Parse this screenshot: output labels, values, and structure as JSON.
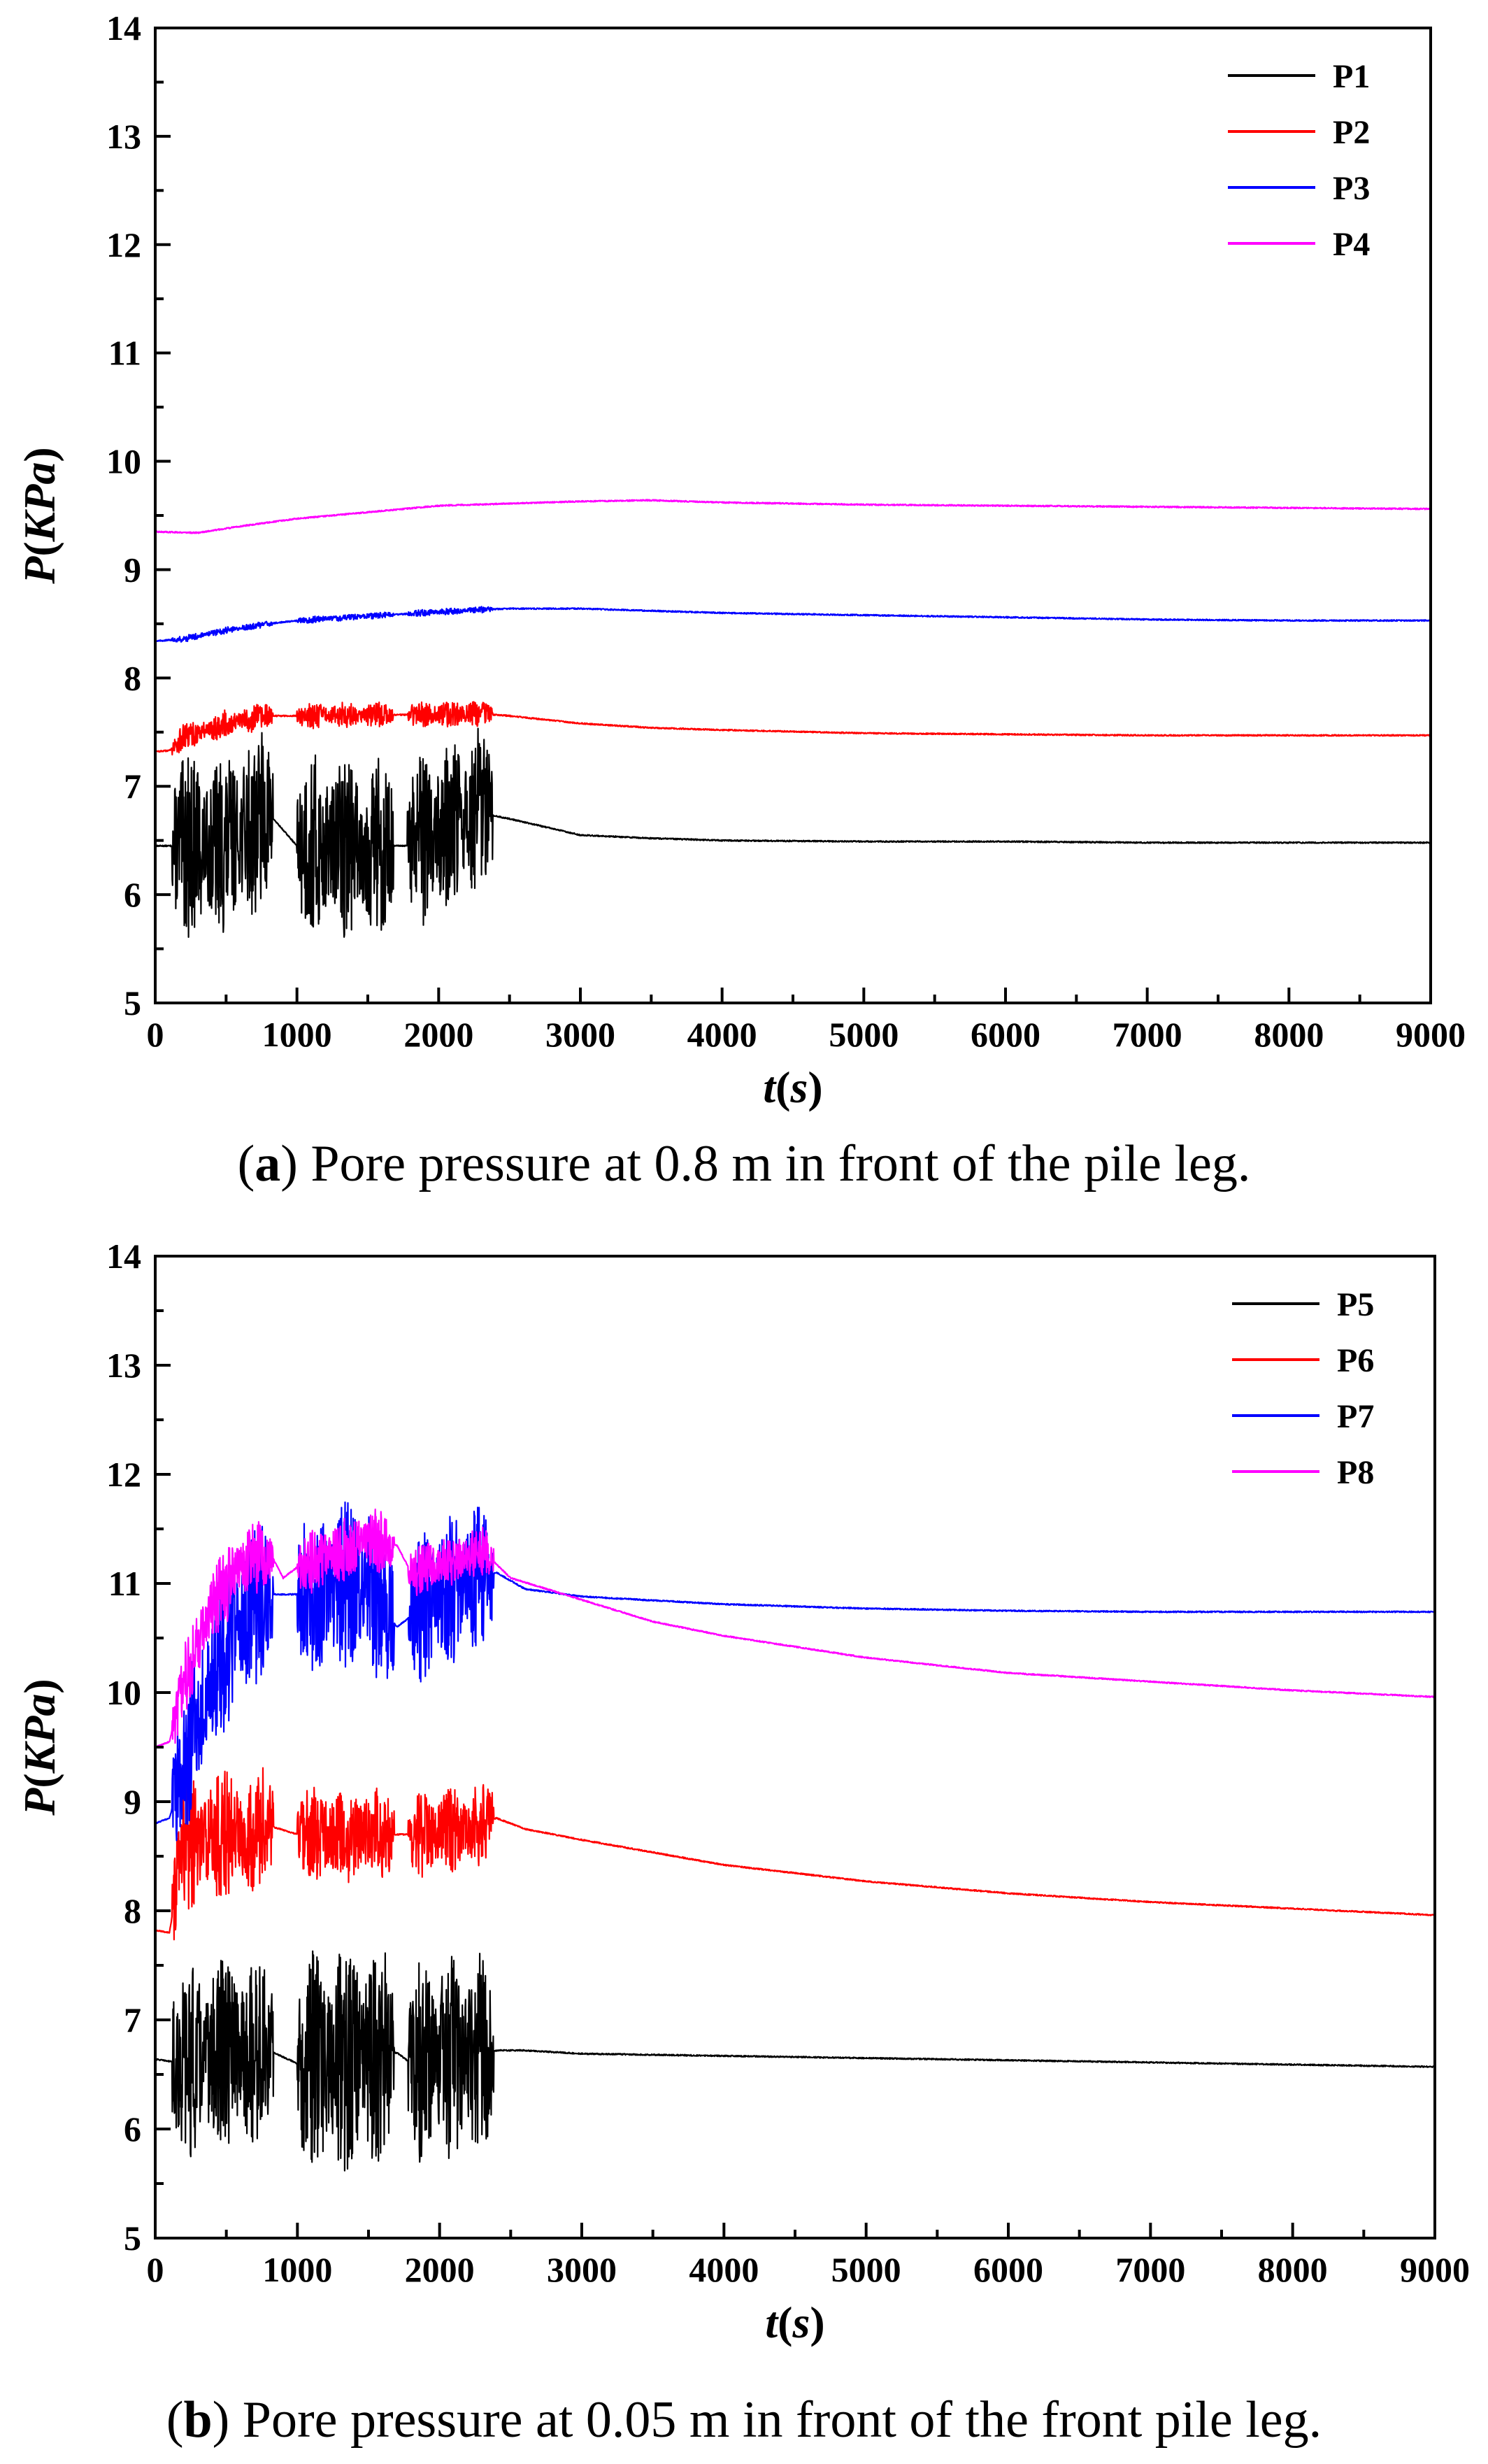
{
  "chart_data": [
    {
      "type": "line",
      "panel": "a",
      "xlabel_main": "t",
      "xlabel_unit": "s",
      "ylabel_main": "P",
      "ylabel_unit": "KPa",
      "xlim": [
        0,
        9000
      ],
      "ylim": [
        5,
        14
      ],
      "xticks": [
        0,
        1000,
        2000,
        3000,
        4000,
        5000,
        6000,
        7000,
        8000,
        9000
      ],
      "yticks": [
        5,
        6,
        7,
        8,
        9,
        10,
        11,
        12,
        13,
        14
      ],
      "grid": false,
      "legend_position": "top-right",
      "caption_letter": "a",
      "caption_text": ") Pore pressure at 0.8 m in front of the pile leg.",
      "series": [
        {
          "name": "P1",
          "color": "#000000",
          "x": [
            0,
            200,
            500,
            800,
            1000,
            1400,
            1800,
            2300,
            2500,
            3000,
            3500,
            4000,
            5000,
            6000,
            7000,
            8000,
            9000
          ],
          "y": [
            6.45,
            6.45,
            6.45,
            6.75,
            6.45,
            6.45,
            6.45,
            6.75,
            6.7,
            6.55,
            6.52,
            6.5,
            6.49,
            6.49,
            6.48,
            6.48,
            6.48
          ],
          "bursts": [
            {
              "start": 120,
              "end": 830,
              "amp": 0.85
            },
            {
              "start": 1000,
              "end": 1680,
              "amp": 0.85
            },
            {
              "start": 1780,
              "end": 2380,
              "amp": 0.8
            }
          ]
        },
        {
          "name": "P2",
          "color": "#ff0000",
          "x": [
            0,
            100,
            200,
            500,
            800,
            1000,
            1400,
            1800,
            2300,
            2500,
            3000,
            3500,
            4000,
            5000,
            6000,
            7000,
            8000,
            9000
          ],
          "y": [
            7.32,
            7.33,
            7.45,
            7.58,
            7.65,
            7.65,
            7.66,
            7.66,
            7.67,
            7.65,
            7.58,
            7.54,
            7.52,
            7.49,
            7.48,
            7.47,
            7.47,
            7.47
          ],
          "bursts": [
            {
              "start": 120,
              "end": 830,
              "amp": 0.13
            },
            {
              "start": 1000,
              "end": 1680,
              "amp": 0.12
            },
            {
              "start": 1780,
              "end": 2380,
              "amp": 0.12
            }
          ]
        },
        {
          "name": "P3",
          "color": "#0000ff",
          "x": [
            0,
            200,
            500,
            800,
            1000,
            1500,
            2000,
            2300,
            2500,
            3000,
            3500,
            4000,
            5000,
            6000,
            7000,
            8000,
            9000
          ],
          "y": [
            8.34,
            8.36,
            8.44,
            8.5,
            8.53,
            8.57,
            8.61,
            8.63,
            8.64,
            8.64,
            8.62,
            8.6,
            8.58,
            8.56,
            8.54,
            8.53,
            8.53
          ],
          "bursts": [
            {
              "start": 120,
              "end": 830,
              "amp": 0.03
            },
            {
              "start": 1000,
              "end": 1680,
              "amp": 0.03
            },
            {
              "start": 1780,
              "end": 2380,
              "amp": 0.03
            }
          ]
        },
        {
          "name": "P4",
          "color": "#ff00ff",
          "x": [
            0,
            300,
            600,
            1000,
            1500,
            2000,
            2500,
            3000,
            3500,
            4000,
            5000,
            6000,
            7000,
            8000,
            9000
          ],
          "y": [
            9.35,
            9.34,
            9.4,
            9.47,
            9.53,
            9.59,
            9.61,
            9.63,
            9.64,
            9.62,
            9.6,
            9.59,
            9.58,
            9.57,
            9.56
          ],
          "bursts": []
        }
      ]
    },
    {
      "type": "line",
      "panel": "b",
      "xlabel_main": "t",
      "xlabel_unit": "s",
      "ylabel_main": "P",
      "ylabel_unit": "KPa",
      "xlim": [
        0,
        9000
      ],
      "ylim": [
        5,
        14
      ],
      "xticks": [
        0,
        1000,
        2000,
        3000,
        4000,
        5000,
        6000,
        7000,
        8000,
        9000
      ],
      "yticks": [
        5,
        6,
        7,
        8,
        9,
        10,
        11,
        12,
        13,
        14
      ],
      "grid": false,
      "legend_position": "top-right",
      "caption_letter": "b",
      "caption_text": ") Pore pressure at 0.05 m in front of the front pile leg.",
      "series": [
        {
          "name": "P5",
          "color": "#000000",
          "x": [
            0,
            100,
            200,
            800,
            1000,
            1700,
            1800,
            2400,
            2600,
            3000,
            4000,
            5000,
            6000,
            7000,
            8000,
            9000
          ],
          "y": [
            6.64,
            6.62,
            6.62,
            6.72,
            6.6,
            6.7,
            6.6,
            6.72,
            6.72,
            6.69,
            6.67,
            6.65,
            6.63,
            6.61,
            6.59,
            6.57
          ],
          "bursts": [
            {
              "start": 120,
              "end": 830,
              "amp": 0.9
            },
            {
              "start": 1000,
              "end": 1680,
              "amp": 1.05
            },
            {
              "start": 1780,
              "end": 2380,
              "amp": 0.95
            }
          ]
        },
        {
          "name": "P6",
          "color": "#ff0000",
          "x": [
            0,
            100,
            200,
            500,
            800,
            1000,
            1500,
            2000,
            2400,
            2600,
            3000,
            4000,
            5000,
            6000,
            7000,
            8000,
            9000
          ],
          "y": [
            7.82,
            7.8,
            8.6,
            8.7,
            8.78,
            8.7,
            8.7,
            8.7,
            8.85,
            8.75,
            8.65,
            8.42,
            8.27,
            8.16,
            8.08,
            8.02,
            7.96
          ],
          "bursts": [
            {
              "start": 120,
              "end": 830,
              "amp": 0.6
            },
            {
              "start": 1000,
              "end": 1680,
              "amp": 0.45
            },
            {
              "start": 1780,
              "end": 2380,
              "amp": 0.4
            }
          ]
        },
        {
          "name": "P7",
          "color": "#0000ff",
          "x": [
            0,
            100,
            300,
            500,
            700,
            800,
            1000,
            1500,
            1700,
            2000,
            2400,
            2600,
            3000,
            4000,
            5000,
            6000,
            7000,
            8000,
            9000
          ],
          "y": [
            8.8,
            8.85,
            9.8,
            10.4,
            10.8,
            10.9,
            10.9,
            11.0,
            10.6,
            10.9,
            11.1,
            10.95,
            10.88,
            10.81,
            10.77,
            10.75,
            10.74,
            10.74,
            10.74
          ],
          "bursts": [
            {
              "start": 120,
              "end": 830,
              "amp": 0.75
            },
            {
              "start": 1000,
              "end": 1680,
              "amp": 0.8
            },
            {
              "start": 1780,
              "end": 2380,
              "amp": 0.7
            }
          ]
        },
        {
          "name": "P8",
          "color": "#ff00ff",
          "x": [
            0,
            100,
            200,
            400,
            600,
            800,
            900,
            1000,
            1500,
            1700,
            1800,
            2300,
            2500,
            3000,
            3500,
            4000,
            5000,
            6000,
            7000,
            8000,
            9000
          ],
          "y": [
            9.5,
            9.55,
            10.1,
            10.8,
            11.15,
            11.3,
            11.05,
            11.15,
            11.4,
            11.35,
            11.1,
            11.3,
            11.05,
            10.85,
            10.65,
            10.52,
            10.32,
            10.18,
            10.1,
            10.02,
            9.96
          ],
          "bursts": [
            {
              "start": 120,
              "end": 830,
              "amp": 0.35
            },
            {
              "start": 1000,
              "end": 1680,
              "amp": 0.3
            },
            {
              "start": 1780,
              "end": 2380,
              "amp": 0.25
            }
          ]
        }
      ]
    }
  ]
}
